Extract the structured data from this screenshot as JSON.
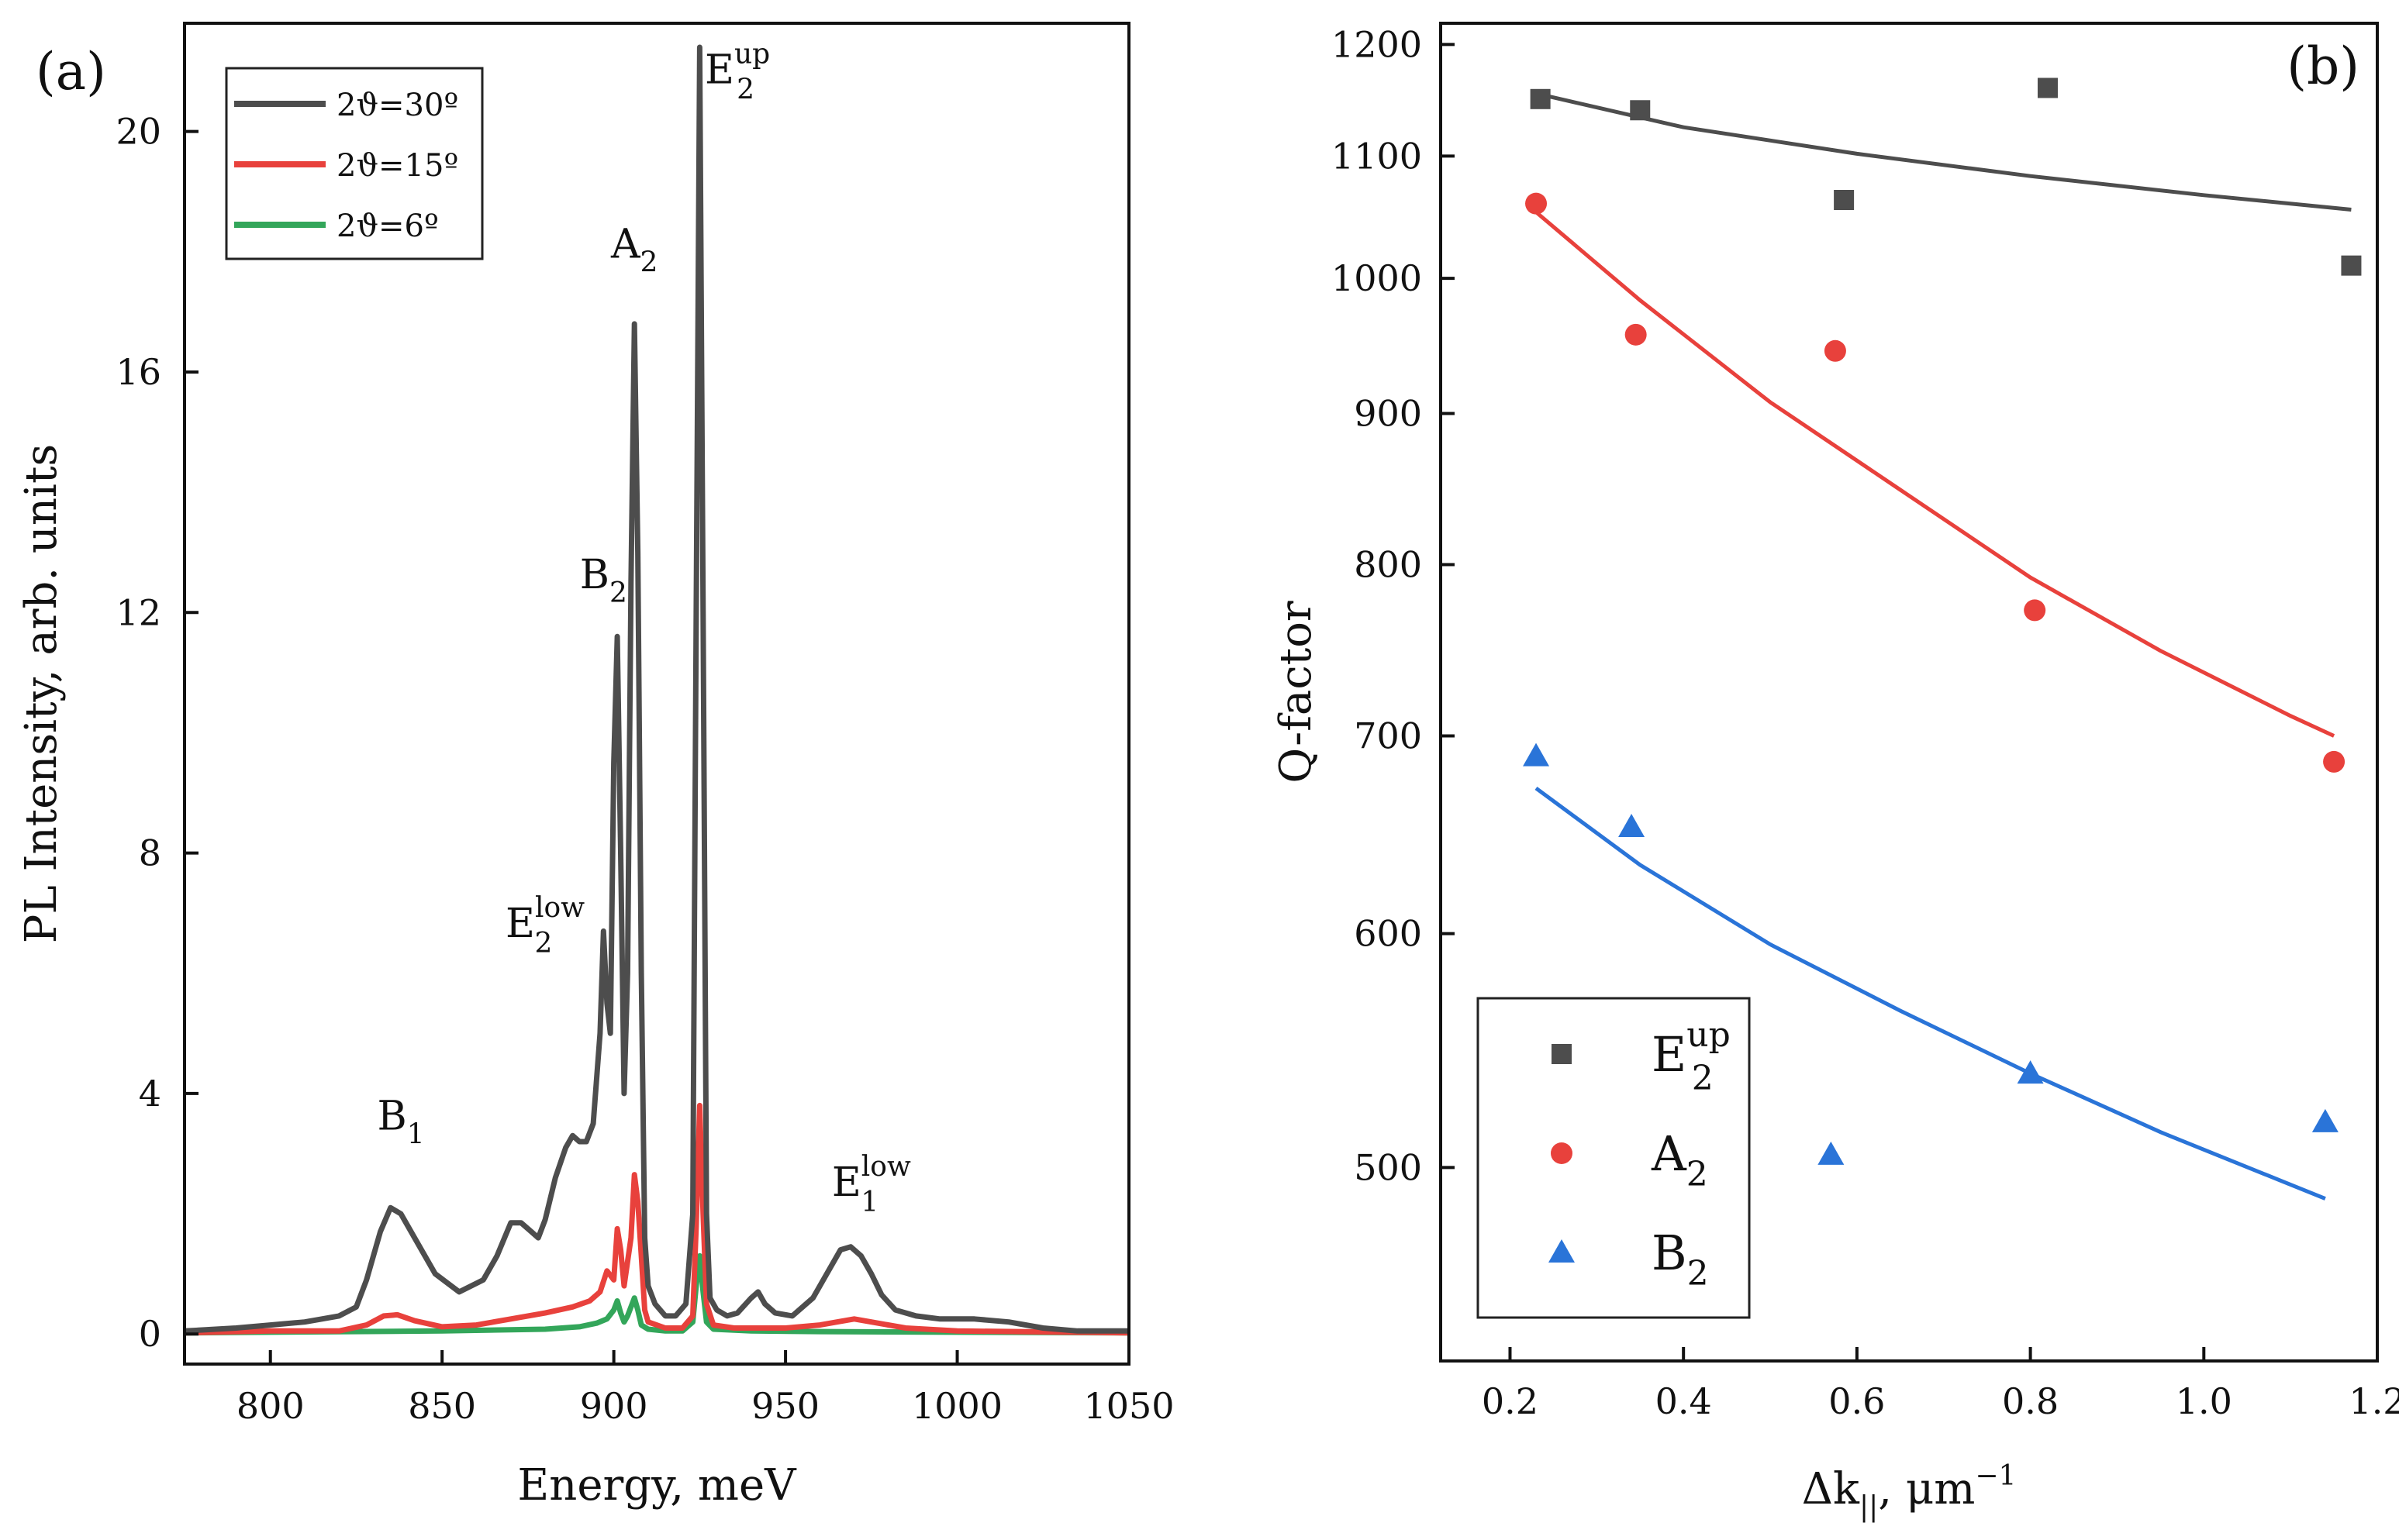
{
  "chart_data": [
    {
      "panel_label": "(a)",
      "type": "line",
      "xlabel": "Energy, meV",
      "ylabel": "PL Intensity, arb. units",
      "xlim": [
        775,
        1050
      ],
      "ylim": [
        -0.5,
        21.8
      ],
      "xticks": [
        800,
        850,
        900,
        950,
        1000,
        1050
      ],
      "yticks": [
        0,
        4,
        8,
        12,
        16,
        20
      ],
      "legend_position": "top-left",
      "series": [
        {
          "name": "2ϑ=30º",
          "color": "#4d4d4d",
          "x": [
            775,
            790,
            800,
            810,
            815,
            820,
            825,
            828,
            832,
            835,
            838,
            842,
            848,
            855,
            862,
            866,
            870,
            873,
            876,
            878,
            880,
            883,
            886,
            888,
            890,
            892,
            894,
            896,
            897,
            898,
            899,
            900,
            901,
            902,
            903,
            904,
            905,
            906,
            907,
            908,
            909,
            910,
            912,
            915,
            918,
            921,
            923,
            924,
            925,
            926,
            927,
            928,
            930,
            933,
            936,
            940,
            942,
            944,
            947,
            952,
            958,
            963,
            966,
            969,
            972,
            975,
            978,
            982,
            988,
            995,
            1005,
            1015,
            1025,
            1035,
            1050
          ],
          "y": [
            0.05,
            0.1,
            0.15,
            0.2,
            0.25,
            0.3,
            0.45,
            0.9,
            1.7,
            2.1,
            2.0,
            1.6,
            1.0,
            0.7,
            0.9,
            1.3,
            1.85,
            1.85,
            1.7,
            1.6,
            1.9,
            2.6,
            3.1,
            3.3,
            3.2,
            3.2,
            3.5,
            5.0,
            6.7,
            5.5,
            5.0,
            9.5,
            11.6,
            8.0,
            4.0,
            6.0,
            12.5,
            16.8,
            13.0,
            6.0,
            1.6,
            0.8,
            0.5,
            0.3,
            0.3,
            0.5,
            2.0,
            12.0,
            21.4,
            12.0,
            2.0,
            0.6,
            0.4,
            0.3,
            0.35,
            0.6,
            0.7,
            0.5,
            0.35,
            0.3,
            0.6,
            1.1,
            1.4,
            1.45,
            1.3,
            1.0,
            0.65,
            0.4,
            0.3,
            0.25,
            0.25,
            0.2,
            0.1,
            0.05,
            0.05
          ]
        },
        {
          "name": "2ϑ=15º",
          "color": "#e8413c",
          "x": [
            775,
            800,
            820,
            828,
            833,
            837,
            842,
            850,
            860,
            870,
            880,
            888,
            893,
            896,
            898,
            900,
            901,
            902,
            903,
            905,
            906,
            907,
            908,
            909,
            910,
            915,
            920,
            923,
            924,
            925,
            926,
            927,
            929,
            935,
            950,
            960,
            965,
            970,
            975,
            985,
            1000,
            1050
          ],
          "y": [
            0.02,
            0.05,
            0.05,
            0.15,
            0.3,
            0.32,
            0.22,
            0.12,
            0.15,
            0.25,
            0.35,
            0.45,
            0.55,
            0.7,
            1.05,
            0.9,
            1.75,
            1.4,
            0.8,
            1.6,
            2.65,
            2.2,
            1.3,
            0.4,
            0.2,
            0.1,
            0.1,
            0.3,
            1.8,
            3.8,
            2.0,
            0.5,
            0.15,
            0.1,
            0.1,
            0.15,
            0.2,
            0.25,
            0.2,
            0.1,
            0.05,
            0.02
          ]
        },
        {
          "name": "2ϑ=6º",
          "color": "#33a65a",
          "x": [
            775,
            800,
            850,
            880,
            890,
            895,
            898,
            900,
            901,
            902,
            903,
            904,
            905,
            906,
            907,
            908,
            910,
            915,
            920,
            923,
            924,
            925,
            926,
            927,
            929,
            940,
            960,
            1000,
            1050
          ],
          "y": [
            0.02,
            0.03,
            0.05,
            0.08,
            0.12,
            0.18,
            0.25,
            0.4,
            0.55,
            0.35,
            0.2,
            0.3,
            0.45,
            0.6,
            0.4,
            0.15,
            0.08,
            0.05,
            0.05,
            0.2,
            0.8,
            1.3,
            0.7,
            0.2,
            0.08,
            0.05,
            0.04,
            0.03,
            0.02
          ]
        }
      ],
      "peak_labels": [
        {
          "base": "B",
          "sub": "1",
          "sup": "",
          "x": 838,
          "y": 3.4
        },
        {
          "base": "E",
          "sub": "2",
          "sup": "low",
          "x": 880,
          "y": 6.6
        },
        {
          "base": "B",
          "sub": "2",
          "sup": "",
          "x": 897,
          "y": 12.4
        },
        {
          "base": "A",
          "sub": "2",
          "sup": "",
          "x": 906,
          "y": 17.9
        },
        {
          "base": "E",
          "sub": "2",
          "sup": "up",
          "x": 936,
          "y": 20.8
        },
        {
          "base": "E",
          "sub": "1",
          "sup": "low",
          "x": 975,
          "y": 2.3
        }
      ]
    },
    {
      "panel_label": "(b)",
      "type": "scatter",
      "xlabel": "Δk",
      "xlabel_sub": "||",
      "xlabel_unit": ", μm",
      "xlabel_unit_sup": "−1",
      "ylabel": "Q-factor",
      "yscale": "log",
      "xlim": [
        0.12,
        1.2
      ],
      "ylim": [
        430,
        1220
      ],
      "xticks": [
        "0.2",
        "0.4",
        "0.6",
        "0.8",
        "1.0",
        "1.2"
      ],
      "xtick_values": [
        0.2,
        0.4,
        0.6,
        0.8,
        1.0,
        1.2
      ],
      "yticks": [
        500,
        600,
        700,
        800,
        900,
        1000,
        1100,
        1200
      ],
      "legend_position": "bottom-left",
      "series": [
        {
          "name": "E",
          "name_sub": "2",
          "name_sup": "up",
          "color": "#4d4d4d",
          "marker": "square",
          "x": [
            0.235,
            0.35,
            0.585,
            0.82,
            1.17
          ],
          "y": [
            1150,
            1140,
            1063,
            1160,
            1010
          ],
          "fit_x": [
            0.23,
            0.4,
            0.6,
            0.8,
            1.0,
            1.17
          ],
          "fit_y": [
            1155,
            1125,
            1102,
            1083,
            1067,
            1055
          ]
        },
        {
          "name": "A",
          "name_sub": "2",
          "name_sup": "",
          "color": "#e8413c",
          "marker": "circle",
          "x": [
            0.23,
            0.345,
            0.575,
            0.805,
            1.15
          ],
          "y": [
            1060,
            957,
            945,
            772,
            686
          ],
          "fit_x": [
            0.23,
            0.35,
            0.5,
            0.65,
            0.8,
            0.95,
            1.1,
            1.15
          ],
          "fit_y": [
            1053,
            983,
            908,
            848,
            792,
            748,
            711,
            700
          ]
        },
        {
          "name": "B",
          "name_sub": "2",
          "name_sup": "",
          "color": "#2a74d8",
          "marker": "triangle",
          "x": [
            0.23,
            0.34,
            0.57,
            0.8,
            1.14
          ],
          "y": [
            689,
            652,
            505,
            538,
            518
          ],
          "fit_x": [
            0.23,
            0.35,
            0.5,
            0.65,
            0.8,
            0.95,
            1.14
          ],
          "fit_y": [
            672,
            633,
            595,
            565,
            538,
            514,
            488
          ]
        }
      ]
    }
  ]
}
